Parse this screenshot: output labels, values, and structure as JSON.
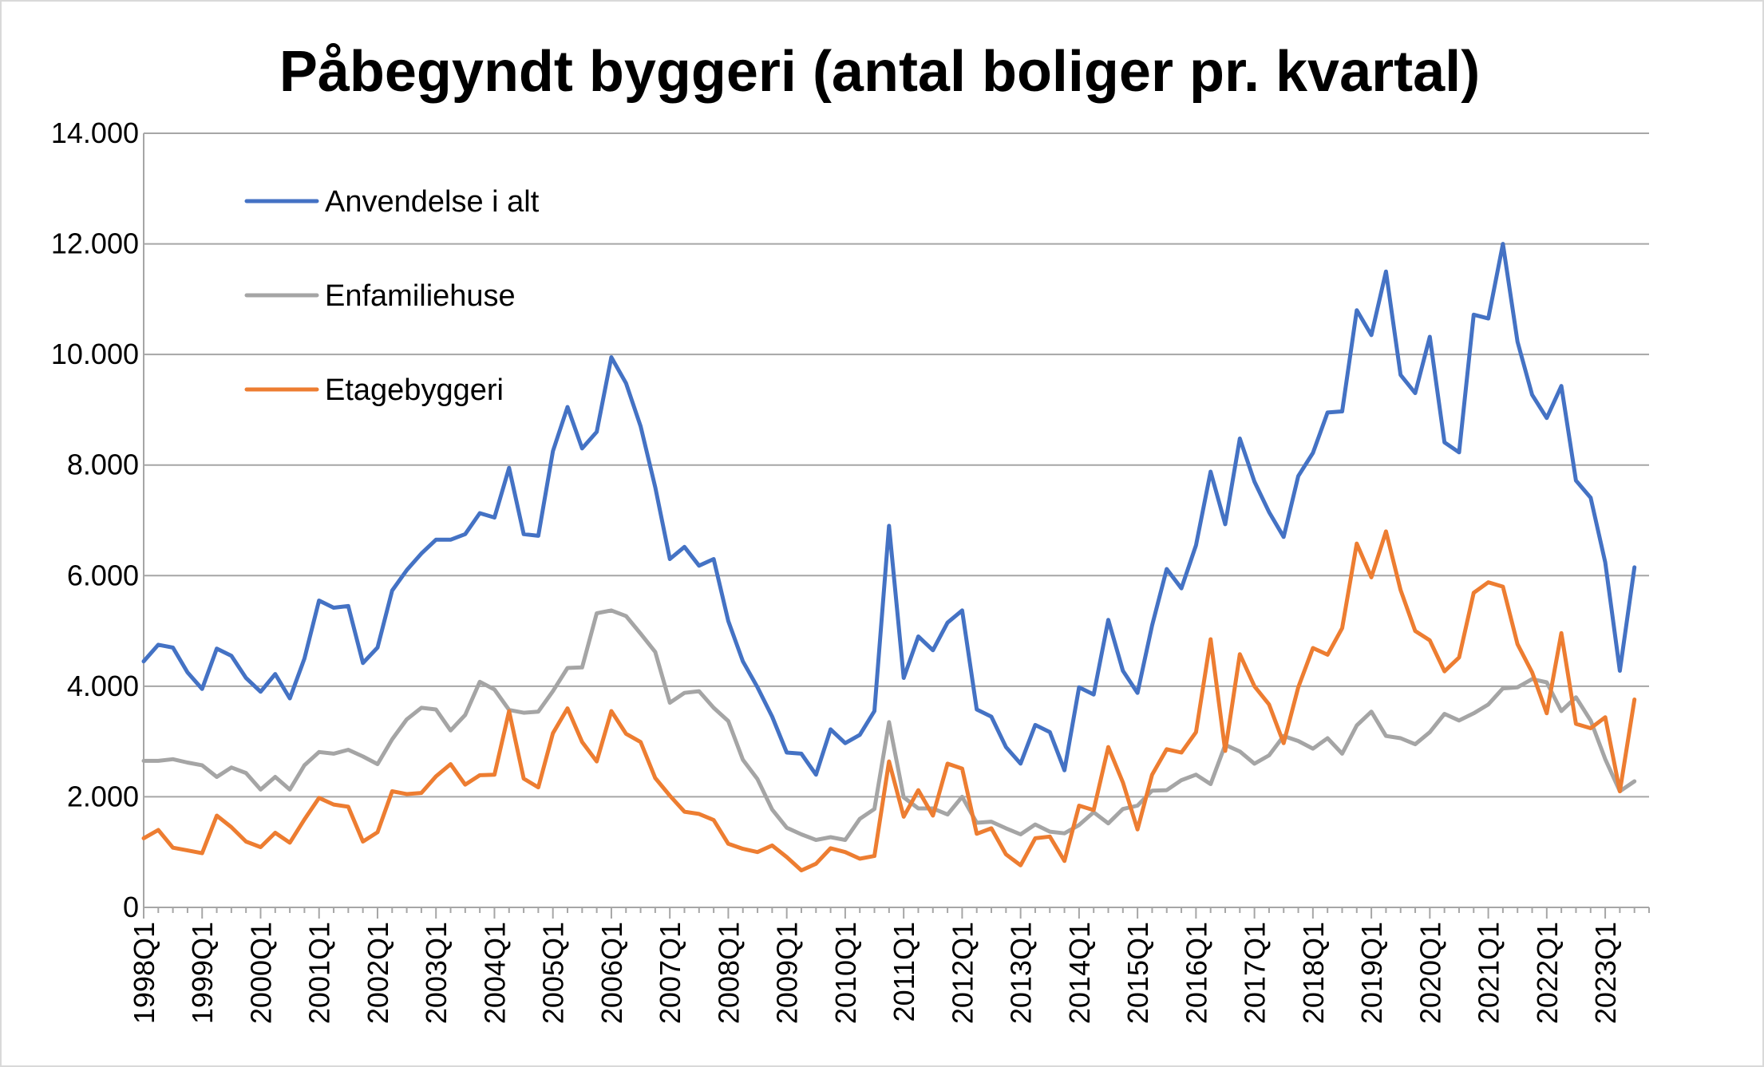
{
  "chart_data": {
    "type": "line",
    "title": "Påbegyndt byggeri (antal boliger pr. kvartal)",
    "xlabel": "",
    "ylabel": "",
    "ylim": [
      0,
      14000
    ],
    "yticks": [
      0,
      2000,
      4000,
      6000,
      8000,
      10000,
      12000,
      14000
    ],
    "ytick_labels": [
      "0",
      "2.000",
      "4.000",
      "6.000",
      "8.000",
      "10.000",
      "12.000",
      "14.000"
    ],
    "xtick_labels": [
      "1998Q1",
      "1999Q1",
      "2000Q1",
      "2001Q1",
      "2002Q1",
      "2003Q1",
      "2004Q1",
      "2005Q1",
      "2006Q1",
      "2007Q1",
      "2008Q1",
      "2009Q1",
      "2010Q1",
      "2011Q1",
      "2012Q1",
      "2013Q1",
      "2014Q1",
      "2015Q1",
      "2016Q1",
      "2017Q1",
      "2018Q1",
      "2019Q1",
      "2020Q1",
      "2021Q1",
      "2022Q1",
      "2023Q1"
    ],
    "grid": true,
    "legend_position": "top-left",
    "x_start": "1998Q1",
    "x_end": "2023Q4",
    "series": [
      {
        "name": "Anvendelse i alt",
        "color": "#4472c4",
        "values": [
          4450,
          4750,
          4700,
          4250,
          3950,
          4680,
          4550,
          4150,
          3900,
          4220,
          3780,
          4500,
          5550,
          5420,
          5450,
          4420,
          4700,
          5730,
          6100,
          6400,
          6650,
          6650,
          6750,
          7130,
          7050,
          7950,
          6750,
          6720,
          8250,
          9050,
          8300,
          8600,
          9950,
          9480,
          8700,
          7600,
          6300,
          6520,
          6180,
          6300,
          5180,
          4450,
          3980,
          3450,
          2800,
          2780,
          2400,
          3220,
          2970,
          3120,
          3550,
          6900,
          4150,
          4900,
          4650,
          5150,
          5370,
          3580,
          3450,
          2900,
          2600,
          3300,
          3170,
          2480,
          3980,
          3850,
          5200,
          4280,
          3880,
          5100,
          6120,
          5770,
          6550,
          7880,
          6930,
          8480,
          7700,
          7150,
          6700,
          7800,
          8220,
          8950,
          8970,
          10800,
          10350,
          11500,
          9630,
          9300,
          10320,
          8410,
          8230,
          10720,
          10650,
          12000,
          10230,
          9270,
          8850,
          9430,
          7720,
          7410,
          6240,
          4280,
          6150
        ]
      },
      {
        "name": "Enfamiliehuse",
        "color": "#a5a5a5",
        "values": [
          2650,
          2650,
          2680,
          2620,
          2570,
          2360,
          2530,
          2430,
          2130,
          2360,
          2130,
          2570,
          2810,
          2780,
          2850,
          2730,
          2590,
          3040,
          3400,
          3610,
          3580,
          3200,
          3480,
          4080,
          3940,
          3570,
          3520,
          3540,
          3910,
          4330,
          4340,
          5320,
          5370,
          5270,
          4950,
          4620,
          3700,
          3880,
          3910,
          3610,
          3370,
          2670,
          2320,
          1770,
          1440,
          1320,
          1220,
          1270,
          1220,
          1600,
          1780,
          3350,
          1990,
          1790,
          1790,
          1680,
          2000,
          1530,
          1550,
          1430,
          1320,
          1500,
          1370,
          1340,
          1490,
          1720,
          1520,
          1780,
          1840,
          2110,
          2120,
          2300,
          2400,
          2230,
          2940,
          2820,
          2600,
          2750,
          3100,
          3010,
          2870,
          3060,
          2780,
          3290,
          3540,
          3100,
          3060,
          2950,
          3170,
          3500,
          3380,
          3510,
          3670,
          3960,
          3980,
          4130,
          4070,
          3550,
          3800,
          3380,
          2680,
          2100,
          2280
        ]
      },
      {
        "name": "Etagebyggeri",
        "color": "#ed7d31",
        "values": [
          1250,
          1400,
          1080,
          1030,
          980,
          1660,
          1450,
          1190,
          1090,
          1350,
          1170,
          1590,
          1980,
          1860,
          1820,
          1190,
          1360,
          2100,
          2050,
          2070,
          2370,
          2590,
          2220,
          2390,
          2400,
          3550,
          2330,
          2170,
          3150,
          3600,
          2990,
          2640,
          3550,
          3140,
          2990,
          2340,
          2020,
          1730,
          1690,
          1580,
          1150,
          1060,
          1000,
          1120,
          910,
          670,
          790,
          1070,
          1000,
          880,
          930,
          2640,
          1640,
          2120,
          1660,
          2600,
          2510,
          1330,
          1430,
          960,
          760,
          1250,
          1280,
          840,
          1840,
          1760,
          2900,
          2260,
          1410,
          2400,
          2860,
          2800,
          3170,
          4850,
          2830,
          4580,
          4000,
          3670,
          2970,
          3980,
          4690,
          4570,
          5050,
          6580,
          5970,
          6800,
          5740,
          5000,
          4830,
          4270,
          4520,
          5690,
          5880,
          5800,
          4760,
          4250,
          3510,
          4960,
          3320,
          3240,
          3440,
          2100,
          3760
        ]
      }
    ]
  }
}
